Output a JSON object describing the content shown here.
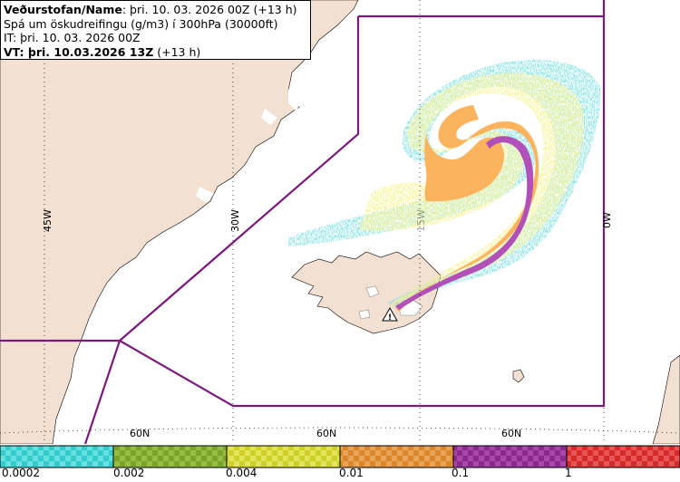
{
  "info": {
    "line1_bold": "Veðurstofan/Name",
    "line1_rest": ": þri. 10. 03. 2026 00Z (+13 h)",
    "line2": "Spá um öskudreifingu (g/m3) í 300hPa (30000ft)",
    "line3": "IT: þri. 10. 03. 2026 00Z",
    "line4_bold": "VT: þri. 10.03.2026 13Z",
    "line4_rest": " (+13 h)"
  },
  "map": {
    "longitude_labels": [
      "45W",
      "30W",
      "15W",
      "0W"
    ],
    "latitude_labels": [
      "60N",
      "60N",
      "60N"
    ],
    "volcano_symbol": "warning-triangle-icon",
    "colors": {
      "land": "#f2e0d2",
      "sea": "#ffffff",
      "boundary": "#7a1a7a",
      "plume_low": "#f5f28a",
      "plume_mid": "#fbb35e",
      "plume_high": "#b050b8",
      "plume_trace": "#7fe0e0"
    }
  },
  "legend": {
    "labels": [
      "0.0002",
      "0.002",
      "0.004",
      "0.01",
      "0.1",
      "1"
    ],
    "bins": [
      {
        "color_a": "#33cccc",
        "color_b": "#66e0e0"
      },
      {
        "color_a": "#7aa52a",
        "color_b": "#98bd45"
      },
      {
        "color_a": "#cfcf2a",
        "color_b": "#e4e45a"
      },
      {
        "color_a": "#d9862c",
        "color_b": "#eaa455"
      },
      {
        "color_a": "#8a2a8a",
        "color_b": "#a848a8"
      },
      {
        "color_a": "#d42a2a",
        "color_b": "#e85555"
      }
    ]
  }
}
